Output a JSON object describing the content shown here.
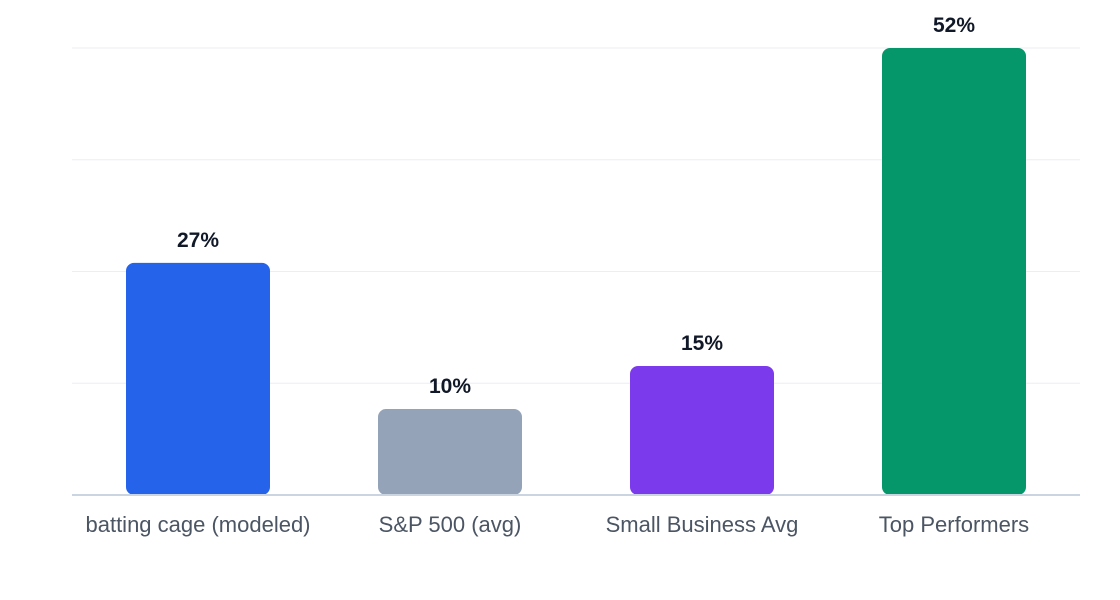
{
  "chart_data": {
    "type": "bar",
    "title": "",
    "xlabel": "",
    "ylabel": "",
    "categories": [
      "batting cage (modeled)",
      "S&P 500 (avg)",
      "Small Business Avg",
      "Top Performers"
    ],
    "values": [
      27,
      10,
      15,
      52
    ],
    "value_labels": [
      "27%",
      "10%",
      "15%",
      "52%"
    ],
    "colors": [
      "#2563eb",
      "#94a3b8",
      "#7c3aed",
      "#059669"
    ],
    "ylim": [
      0,
      52
    ],
    "grid": true,
    "legend": "none"
  }
}
